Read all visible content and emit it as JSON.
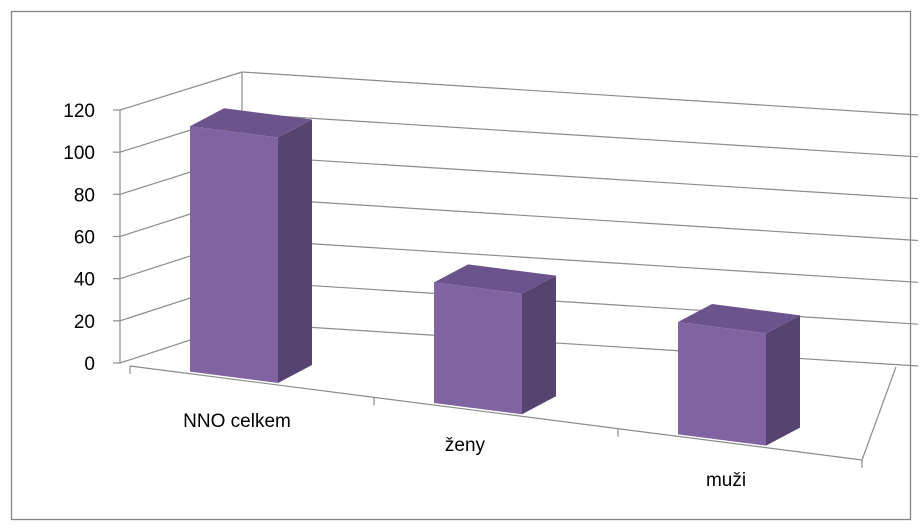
{
  "chart_data": {
    "type": "bar",
    "title": "",
    "xlabel": "",
    "ylabel": "",
    "ylim": [
      0,
      120
    ],
    "yticks": [
      0,
      20,
      40,
      60,
      80,
      100,
      120
    ],
    "grid": true,
    "legend": "none",
    "categories": [
      "NNO celkem",
      "ženy",
      "muži"
    ],
    "series": [
      {
        "values": [
          118,
          58,
          54
        ]
      }
    ],
    "colors": {
      "bar_front": "#8064a2",
      "bar_side": "#56436f",
      "bar_top": "#6b538c",
      "gridline": "#8c8c8c",
      "frame": "#868686"
    }
  }
}
